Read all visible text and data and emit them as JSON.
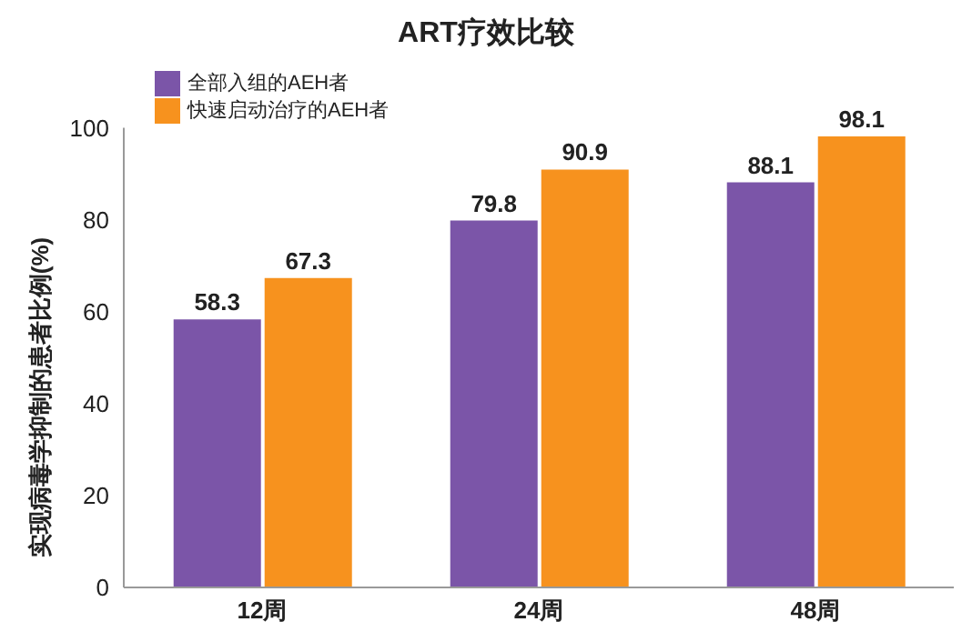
{
  "chart_data": {
    "type": "bar",
    "title": "ART疗效比较",
    "ylabel": "实现病毒学抑制的患者比例(%)",
    "categories": [
      "12周",
      "24周",
      "48周"
    ],
    "series": [
      {
        "name": "全部入组的AEH者",
        "color": "#7b55a8",
        "values": [
          58.3,
          79.8,
          88.1
        ]
      },
      {
        "name": "快速启动治疗的AEH者",
        "color": "#f7921e",
        "values": [
          67.3,
          90.9,
          98.1
        ]
      }
    ],
    "ylim": [
      0,
      100
    ],
    "yticks": [
      0,
      20,
      40,
      60,
      80,
      100
    ],
    "grid": false,
    "legend": "top left",
    "data_labels": true
  }
}
